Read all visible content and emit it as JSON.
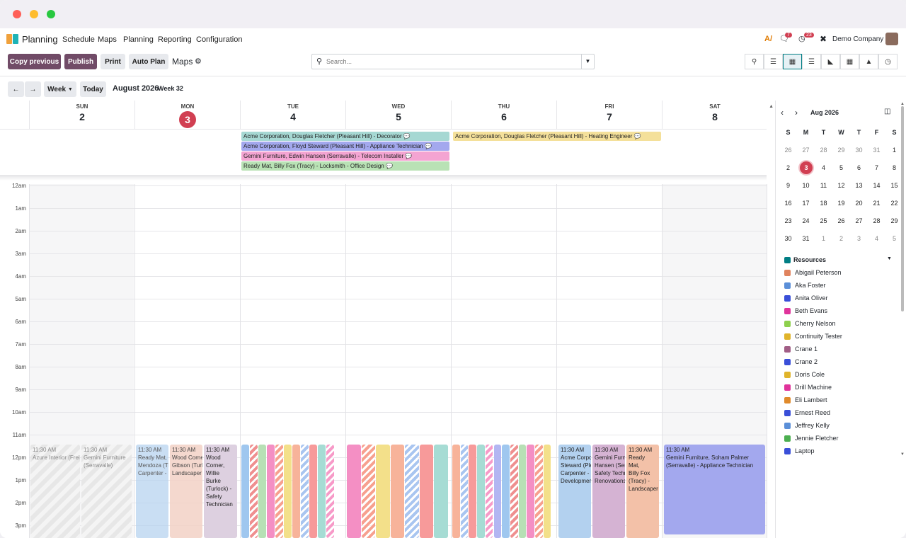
{
  "brand": "Planning",
  "menu": [
    "Schedule",
    "Maps",
    "Planning",
    "Reporting",
    "Configuration"
  ],
  "top_right": {
    "msg_badge": "7",
    "act_badge": "23",
    "company": "Demo Company"
  },
  "actions": {
    "copy": "Copy previous",
    "publish": "Publish",
    "print": "Print",
    "auto": "Auto Plan",
    "maps": "Maps"
  },
  "search": {
    "placeholder": "Search..."
  },
  "datebar": {
    "scale": "Week",
    "today": "Today",
    "title": "August 2026",
    "week": "Week 32"
  },
  "days": [
    {
      "n": "SUN",
      "d": "2"
    },
    {
      "n": "MON",
      "d": "3"
    },
    {
      "n": "TUE",
      "d": "4"
    },
    {
      "n": "WED",
      "d": "5"
    },
    {
      "n": "THU",
      "d": "6"
    },
    {
      "n": "FRI",
      "d": "7"
    },
    {
      "n": "SAT",
      "d": "8"
    }
  ],
  "allday": [
    {
      "text": "Acme Corporation, Douglas Fletcher (Pleasant Hill) - Decorator",
      "color": "#a6d8d3"
    },
    {
      "text": "Acme Corporation, Floyd Steward (Pleasant Hill) - Appliance Technician",
      "color": "#a3a8ee"
    },
    {
      "text": "Gemini Furniture, Edwin Hansen (Serravalle) - Telecom Installer",
      "color": "#f4a4d2"
    },
    {
      "text": "Ready Mat, Billy Fox (Tracy) - Locksmith - Office Design",
      "color": "#b9e2b5"
    },
    {
      "text": "Acme Corporation, Douglas Fletcher (Pleasant Hill) - Heating Engineer",
      "color": "#f4e09a"
    }
  ],
  "hours": [
    "12am",
    "1am",
    "2am",
    "3am",
    "4am",
    "5am",
    "6am",
    "7am",
    "8am",
    "9am",
    "10am",
    "11am",
    "12pm",
    "1pm",
    "2pm",
    "3pm"
  ],
  "events": {
    "sun": [
      {
        "lines": [
          "11:30 AM",
          "Azure Interior (Frei"
        ]
      },
      {
        "lines": [
          "11:30 AM",
          "Gemini Furniture",
          "(Serravalle)"
        ]
      }
    ],
    "mon": [
      {
        "lines": [
          "11:30 AM",
          "Ready Mat,",
          "Mendoza (Tr",
          "Carpenter - ..."
        ],
        "color": "#b7d3ef"
      },
      {
        "lines": [
          "11:30 AM",
          "Wood Corne",
          "Gibson (Turl",
          "Landscaper"
        ],
        "color": "#f3d2c6"
      },
      {
        "lines": [
          "11:30 AM",
          "Wood",
          "Corner,",
          "Willie",
          "Burke",
          "(Turlock) -",
          "Safety",
          "Technician"
        ],
        "color": "#ddd0e0"
      }
    ],
    "fri": [
      {
        "lines": [
          "11:30 AM",
          "Acme Corpo",
          "Steward (Ple",
          "Carpenter -",
          "Developmen"
        ],
        "color": "#b3d1ef"
      },
      {
        "lines": [
          "11:30 AM",
          "Gemini Furn",
          "Hansen (Ser",
          "Safety Techn",
          "Renovations"
        ],
        "color": "#d5b3d3"
      },
      {
        "lines": [
          "11:30 AM",
          "Ready Mat,",
          "Billy Fox",
          "(Tracy) -",
          "Landscaper"
        ],
        "color": "#f3c1a8"
      }
    ],
    "sat": [
      {
        "lines": [
          "11:30 AM",
          "Gemini Furniture, Soham Palmer",
          "(Serravalle) - Appliance Technician"
        ],
        "color": "#a3a8ee"
      }
    ]
  },
  "mini": {
    "title": "Aug 2026",
    "head": [
      "S",
      "M",
      "T",
      "W",
      "T",
      "F",
      "S"
    ],
    "rows": [
      [
        "26",
        "27",
        "28",
        "29",
        "30",
        "31",
        "1"
      ],
      [
        "2",
        "3",
        "4",
        "5",
        "6",
        "7",
        "8"
      ],
      [
        "9",
        "10",
        "11",
        "12",
        "13",
        "14",
        "15"
      ],
      [
        "16",
        "17",
        "18",
        "19",
        "20",
        "21",
        "22"
      ],
      [
        "23",
        "24",
        "25",
        "26",
        "27",
        "28",
        "29"
      ],
      [
        "30",
        "31",
        "1",
        "2",
        "3",
        "4",
        "5"
      ]
    ]
  },
  "resources": {
    "title": "Resources",
    "items": [
      {
        "name": "Abigail Peterson",
        "color": "#e0835e"
      },
      {
        "name": "Aka Foster",
        "color": "#5b8fd8"
      },
      {
        "name": "Anita Oliver",
        "color": "#3a4fd8"
      },
      {
        "name": "Beth Evans",
        "color": "#e0339b"
      },
      {
        "name": "Cherry Nelson",
        "color": "#8ed04d"
      },
      {
        "name": "Continuity Tester",
        "color": "#e0b42b"
      },
      {
        "name": "Crane 1",
        "color": "#a15e86"
      },
      {
        "name": "Crane 2",
        "color": "#3a4fd8"
      },
      {
        "name": "Doris Cole",
        "color": "#e0b42b"
      },
      {
        "name": "Drill Machine",
        "color": "#e0339b"
      },
      {
        "name": "Eli Lambert",
        "color": "#e08a2b"
      },
      {
        "name": "Ernest Reed",
        "color": "#3a4fd8"
      },
      {
        "name": "Jeffrey Kelly",
        "color": "#5b8fd8"
      },
      {
        "name": "Jennie Fletcher",
        "color": "#4caf50"
      },
      {
        "name": "Laptop",
        "color": "#3a4fd8"
      }
    ]
  }
}
